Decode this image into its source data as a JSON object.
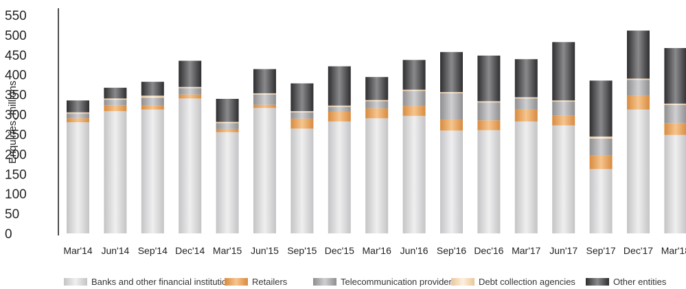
{
  "chart_data": {
    "type": "bar",
    "stacked": true,
    "ylabel": "Enquiries, millions",
    "xlabel": "",
    "ylim": [
      0,
      550
    ],
    "yticks": [
      0,
      50,
      100,
      150,
      200,
      250,
      300,
      350,
      400,
      450,
      500,
      550
    ],
    "grid": false,
    "legend_position": "bottom",
    "categories": [
      "Mar'14",
      "Jun'14",
      "Sep'14",
      "Dec'14",
      "Mar'15",
      "Jun'15",
      "Sep'15",
      "Dec'15",
      "Mar'16",
      "Jun'16",
      "Sep'16",
      "Dec'16",
      "Mar'17",
      "Jun'17",
      "Sep'17",
      "Dec'17",
      "Mar'18"
    ],
    "series": [
      {
        "name": "Banks and other financial institutions",
        "color": "#d4d4d6",
        "values": [
          280,
          308,
          312,
          340,
          255,
          316,
          264,
          282,
          290,
          296,
          259,
          260,
          282,
          272,
          162,
          312,
          248
        ]
      },
      {
        "name": "Retailers",
        "color": "#e6a464",
        "values": [
          10,
          15,
          10,
          10,
          8,
          8,
          25,
          25,
          25,
          25,
          28,
          25,
          30,
          25,
          35,
          35,
          30
        ]
      },
      {
        "name": "Telecommunication providers",
        "color": "#a9a9ab",
        "values": [
          12,
          14,
          20,
          16,
          15,
          26,
          16,
          12,
          18,
          38,
          66,
          45,
          28,
          35,
          42,
          40,
          46
        ]
      },
      {
        "name": "Debt collection agencies",
        "color": "#f4d9b8",
        "values": [
          3,
          3,
          5,
          3,
          3,
          3,
          3,
          3,
          3,
          3,
          3,
          3,
          3,
          3,
          5,
          3,
          3
        ]
      },
      {
        "name": "Other entities",
        "color": "#5a5a5c",
        "values": [
          30,
          27,
          35,
          66,
          58,
          61,
          70,
          99,
          58,
          75,
          101,
          115,
          96,
          147,
          141,
          121,
          140
        ]
      }
    ]
  }
}
